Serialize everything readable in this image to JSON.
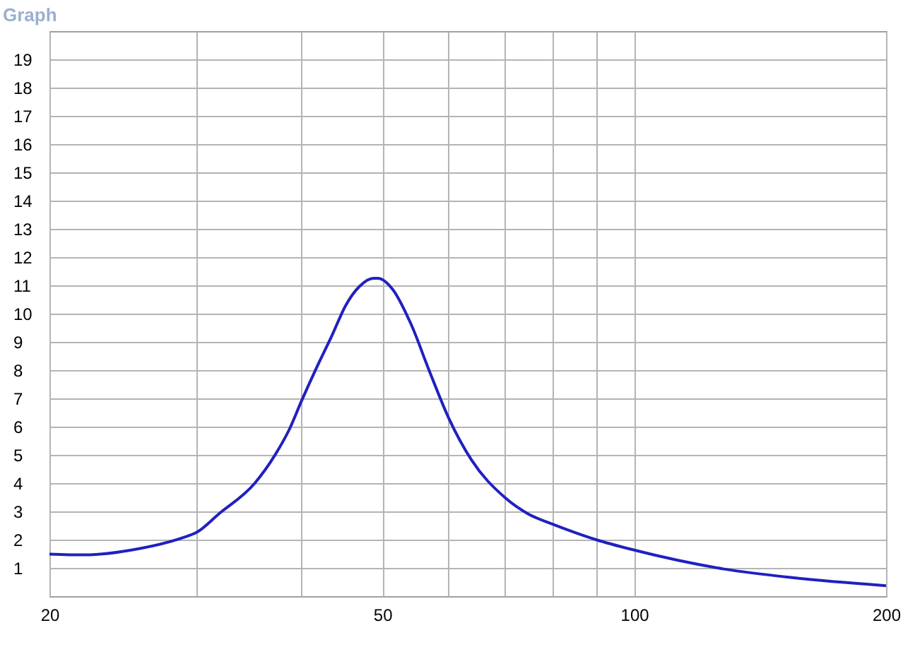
{
  "chart_data": {
    "type": "line",
    "title": "Graph",
    "x": [
      20,
      22,
      25.6,
      28.8,
      30,
      31.9,
      35.2,
      37.2,
      38.7,
      40,
      41.8,
      43.5,
      45.2,
      46.9,
      48.8,
      49.4,
      51.4,
      54.1,
      56.9,
      60,
      63.9,
      70,
      74.6,
      80,
      84.8,
      90,
      100,
      128.1,
      155.2,
      200
    ],
    "series": [
      {
        "color": "#2020c0",
        "values": [
          1.49,
          1.46,
          1.68,
          2.06,
          2.26,
          2.92,
          4.0,
          4.99,
          5.9,
          6.89,
          8.14,
          9.21,
          10.29,
          10.95,
          11.25,
          11.25,
          10.87,
          9.63,
          7.97,
          6.31,
          4.82,
          3.5,
          2.92,
          2.54,
          2.26,
          2.0,
          1.63,
          0.96,
          0.65,
          0.37
        ]
      }
    ],
    "log": "x",
    "xlim": [
      20,
      200
    ],
    "xticks": [
      20,
      {
        "value": 30,
        "label": null
      },
      {
        "value": 40,
        "label": null
      },
      50,
      {
        "value": 60,
        "label": null
      },
      {
        "value": 70,
        "label": null
      },
      {
        "value": 80,
        "label": null
      },
      {
        "value": 90,
        "label": null
      },
      100,
      200
    ],
    "ylim": [
      0,
      20
    ],
    "yticks": [
      1,
      2,
      3,
      4,
      5,
      6,
      7,
      8,
      9,
      10,
      11,
      12,
      13,
      14,
      15,
      16,
      17,
      18,
      19
    ],
    "grid": true,
    "marker": "none",
    "line_style": "solid"
  }
}
